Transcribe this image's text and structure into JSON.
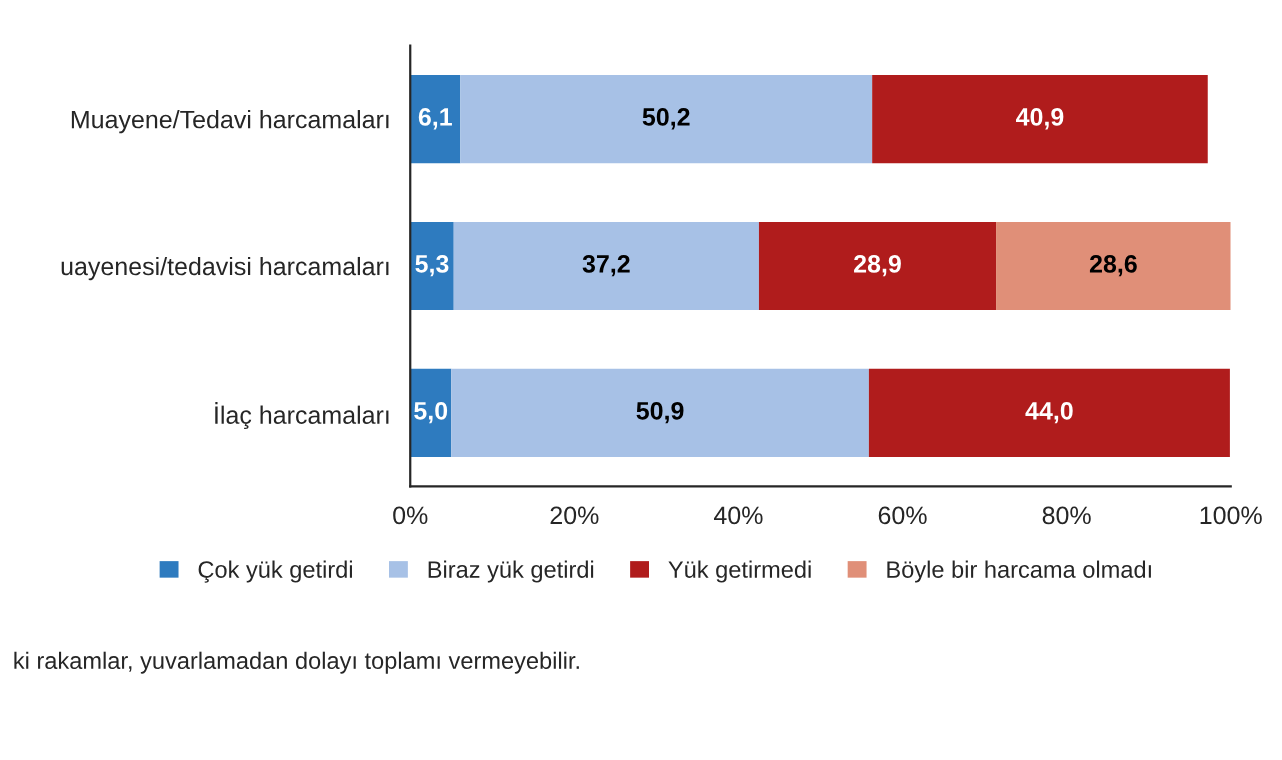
{
  "chart_data": {
    "type": "bar",
    "orientation": "horizontal",
    "stacked": true,
    "categories": [
      "Muayene/Tedavi harcamaları",
      "uayenesi/tedavisi harcamaları",
      "İlaç harcamaları"
    ],
    "series": [
      {
        "name": "Çok yük getirdi",
        "color": "#2e7bbf",
        "values": [
          6.1,
          5.3,
          5.0
        ],
        "value_labels": [
          "6,1",
          "5,3",
          "5,0"
        ]
      },
      {
        "name": "Biraz yük getirdi",
        "color": "#a7c1e6",
        "values": [
          50.2,
          37.2,
          50.9
        ],
        "value_labels": [
          "50,2",
          "37,2",
          "50,9"
        ]
      },
      {
        "name": "Yük getirmedi",
        "color": "#b01c1c",
        "values": [
          40.9,
          28.9,
          44.0
        ],
        "value_labels": [
          "40,9",
          "28,9",
          "44,0"
        ]
      },
      {
        "name": "Böyle bir harcama olmadı",
        "color": "#e08f78",
        "values": [
          null,
          28.6,
          null
        ],
        "value_labels": [
          null,
          "28,6",
          null
        ]
      }
    ],
    "xlim": [
      0,
      100
    ],
    "xticks": [
      {
        "value": 0,
        "label": "0%"
      },
      {
        "value": 20,
        "label": "20%"
      },
      {
        "value": 40,
        "label": "40%"
      },
      {
        "value": 60,
        "label": "60%"
      },
      {
        "value": 80,
        "label": "80%"
      },
      {
        "value": 100,
        "label": "100%"
      }
    ],
    "grid": false,
    "legend": "bottom",
    "annotations": [
      "ki rakamlar, yuvarlamadan dolayı toplamı vermeyebilir."
    ]
  }
}
